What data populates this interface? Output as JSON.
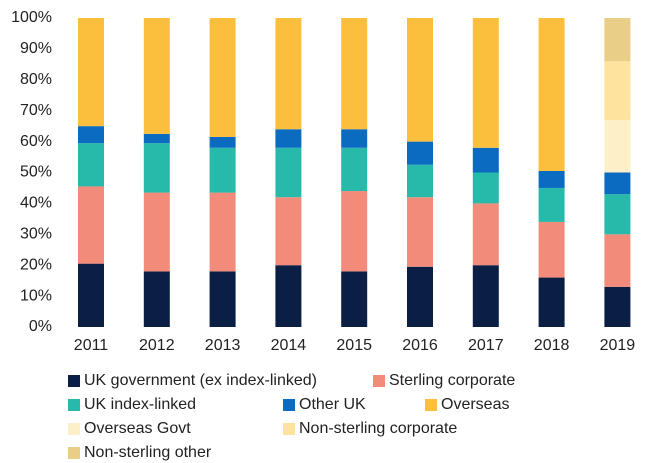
{
  "chart_data": {
    "type": "stacked_bar",
    "categories": [
      "2011",
      "2012",
      "2013",
      "2014",
      "2015",
      "2016",
      "2017",
      "2018",
      "2019"
    ],
    "series": [
      {
        "name": "UK government (ex index-linked)",
        "color": "#0b1f45",
        "values": [
          20.5,
          18,
          18,
          20,
          18,
          19.5,
          20,
          16,
          13
        ]
      },
      {
        "name": "Sterling corporate",
        "color": "#f28b79",
        "values": [
          25,
          25.5,
          25.5,
          22,
          26,
          22.5,
          20,
          18,
          17
        ]
      },
      {
        "name": "UK index-linked",
        "color": "#27b9a9",
        "values": [
          14,
          16,
          14.5,
          16,
          14,
          10.5,
          10,
          11,
          13
        ]
      },
      {
        "name": "Other UK",
        "color": "#0b6bc1",
        "values": [
          5.5,
          3,
          3.5,
          6,
          6,
          7.5,
          8,
          5.5,
          7
        ]
      },
      {
        "name": "Overseas",
        "color": "#fcbf3d",
        "values": [
          35,
          37.5,
          38.5,
          36,
          36,
          40,
          42,
          49.5,
          0
        ]
      },
      {
        "name": "Overseas Govt",
        "color": "#fdf0c8",
        "values": [
          0,
          0,
          0,
          0,
          0,
          0,
          0,
          0,
          17
        ]
      },
      {
        "name": "Non-sterling corporate",
        "color": "#fde39d",
        "values": [
          0,
          0,
          0,
          0,
          0,
          0,
          0,
          0,
          19
        ]
      },
      {
        "name": "Non-sterling other",
        "color": "#e9ce88",
        "values": [
          0,
          0,
          0,
          0,
          0,
          0,
          0,
          0,
          14
        ]
      }
    ],
    "ylim": [
      0,
      100
    ],
    "yticks": [
      {
        "value": 0,
        "label": "0%"
      },
      {
        "value": 10,
        "label": "10%"
      },
      {
        "value": 20,
        "label": "20%"
      },
      {
        "value": 30,
        "label": "30%"
      },
      {
        "value": 40,
        "label": "40%"
      },
      {
        "value": 50,
        "label": "50%"
      },
      {
        "value": 60,
        "label": "60%"
      },
      {
        "value": 70,
        "label": "70%"
      },
      {
        "value": 80,
        "label": "80%"
      },
      {
        "value": 90,
        "label": "90%"
      },
      {
        "value": 100,
        "label": "100%"
      }
    ]
  }
}
